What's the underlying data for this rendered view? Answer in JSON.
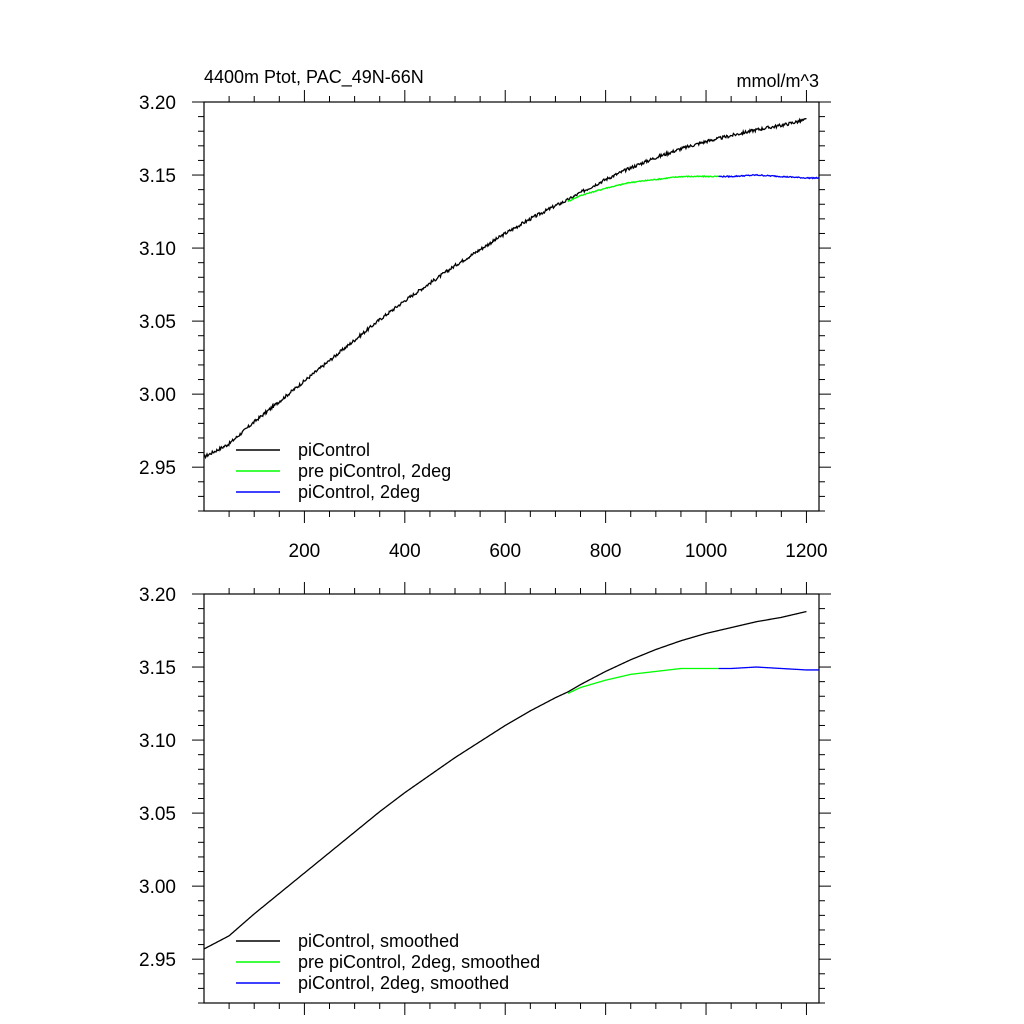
{
  "chart_data": [
    {
      "type": "line",
      "title_left": "4400m Ptot, PAC_49N-66N",
      "title_right": "mmol/m^3",
      "xlim": [
        0,
        1225
      ],
      "ylim": [
        2.92,
        3.2
      ],
      "x_ticks": [
        200,
        400,
        600,
        800,
        1000,
        1200
      ],
      "x_tick_labels": [
        "200",
        "400",
        "600",
        "800",
        "1000",
        "1200"
      ],
      "y_ticks": [
        2.95,
        3.0,
        3.05,
        3.1,
        3.15,
        3.2
      ],
      "y_tick_labels": [
        "2.95",
        "3.00",
        "3.05",
        "3.10",
        "3.15",
        "3.20"
      ],
      "legend_position": "bottom-left",
      "series": [
        {
          "name": "piControl",
          "color": "#000000",
          "x": [
            0,
            50,
            100,
            150,
            200,
            250,
            300,
            350,
            400,
            450,
            500,
            550,
            600,
            650,
            700,
            725,
            750,
            800,
            850,
            900,
            950,
            1000,
            1050,
            1100,
            1150,
            1200
          ],
          "y": [
            2.957,
            2.966,
            2.981,
            2.995,
            3.009,
            3.023,
            3.037,
            3.051,
            3.064,
            3.076,
            3.088,
            3.099,
            3.11,
            3.12,
            3.129,
            3.133,
            3.138,
            3.147,
            3.155,
            3.162,
            3.168,
            3.173,
            3.177,
            3.181,
            3.184,
            3.188
          ]
        },
        {
          "name": "pre piControl, 2deg",
          "color": "#00ff00",
          "x": [
            725,
            750,
            800,
            850,
            900,
            950,
            1000,
            1025
          ],
          "y": [
            3.132,
            3.136,
            3.141,
            3.145,
            3.147,
            3.149,
            3.149,
            3.149
          ]
        },
        {
          "name": "piControl, 2deg",
          "color": "#0000ff",
          "x": [
            1025,
            1050,
            1100,
            1150,
            1200,
            1225
          ],
          "y": [
            3.149,
            3.149,
            3.15,
            3.149,
            3.148,
            3.148
          ]
        }
      ]
    },
    {
      "type": "line",
      "xlim": [
        0,
        1225
      ],
      "ylim": [
        2.92,
        3.2
      ],
      "x_ticks": [
        200,
        400,
        600,
        800,
        1000,
        1200
      ],
      "y_ticks": [
        2.95,
        3.0,
        3.05,
        3.1,
        3.15,
        3.2
      ],
      "y_tick_labels": [
        "2.95",
        "3.00",
        "3.05",
        "3.10",
        "3.15",
        "3.20"
      ],
      "legend_position": "bottom-left",
      "series": [
        {
          "name": "piControl, smoothed",
          "color": "#000000",
          "x": [
            0,
            50,
            100,
            150,
            200,
            250,
            300,
            350,
            400,
            450,
            500,
            550,
            600,
            650,
            700,
            725,
            750,
            800,
            850,
            900,
            950,
            1000,
            1050,
            1100,
            1150,
            1200
          ],
          "y": [
            2.957,
            2.966,
            2.981,
            2.995,
            3.009,
            3.023,
            3.037,
            3.051,
            3.064,
            3.076,
            3.088,
            3.099,
            3.11,
            3.12,
            3.129,
            3.133,
            3.138,
            3.147,
            3.155,
            3.162,
            3.168,
            3.173,
            3.177,
            3.181,
            3.184,
            3.188
          ]
        },
        {
          "name": "pre piControl, 2deg, smoothed",
          "color": "#00ff00",
          "x": [
            725,
            750,
            800,
            850,
            900,
            950,
            1000,
            1025
          ],
          "y": [
            3.132,
            3.136,
            3.141,
            3.145,
            3.147,
            3.149,
            3.149,
            3.149
          ]
        },
        {
          "name": "piControl, 2deg, smoothed",
          "color": "#0000ff",
          "x": [
            1025,
            1050,
            1100,
            1150,
            1200,
            1225
          ],
          "y": [
            3.149,
            3.149,
            3.15,
            3.149,
            3.148,
            3.148
          ]
        }
      ]
    }
  ]
}
